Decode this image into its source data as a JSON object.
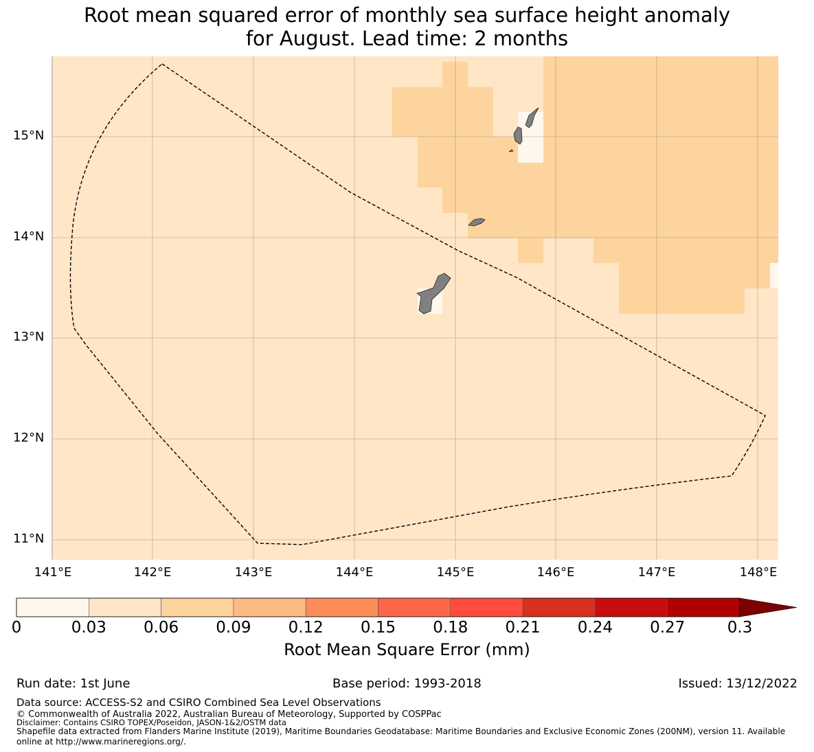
{
  "title": {
    "line1": "Root mean squared error of monthly sea surface height anomaly",
    "line2": "for August. Lead time: 2 months"
  },
  "map": {
    "lat_labels": [
      "15°N",
      "14°N",
      "13°N",
      "12°N",
      "11°N"
    ],
    "lon_labels": [
      "141°E",
      "142°E",
      "143°E",
      "144°E",
      "145°E",
      "146°E",
      "147°E",
      "148°E"
    ],
    "colors": {
      "background_class_0_03_0_06": "#fee6c6",
      "class_0_06_0_09": "#fdd49e",
      "class_0_0_03": "#fff7ec",
      "land": "#808080",
      "boundary_line": "#000000"
    },
    "boundary_style": "dashed"
  },
  "colorbar": {
    "label": "Root Mean Square Error (mm)",
    "ticks": [
      "0",
      "0.03",
      "0.06",
      "0.09",
      "0.12",
      "0.15",
      "0.18",
      "0.21",
      "0.24",
      "0.27",
      "0.3"
    ],
    "colors": [
      "#fff7ec",
      "#fee6c6",
      "#fdd49e",
      "#fdbb84",
      "#fc8d59",
      "#fe6649",
      "#ff4c3c",
      "#d7301f",
      "#c70d12",
      "#b00000",
      "#7f0000"
    ],
    "extend": "max"
  },
  "footer": {
    "run_date": "Run date: 1st June",
    "base_period": "Base period: 1993-2018",
    "issued": "Issued: 13/12/2022",
    "data_source": "Data source: ACCESS-S2 and CSIRO Combined Sea Level Observations",
    "copyright": "© Commonwealth of Australia 2022, Australian Bureau of Meteorology, Supported by COSPPac",
    "disclaimer": "Disclaimer: Contains CSIRO TOPEX/Poseidon, JASON-1&2/OSTM data",
    "shapefile": "Shapefile data extracted from Flanders Marine Institute (2019), Maritime Boundaries Geodatabase: Maritime Boundaries and Exclusive Economic Zones (200NM), version 11. Available online at http://www.marineregions.org/."
  }
}
